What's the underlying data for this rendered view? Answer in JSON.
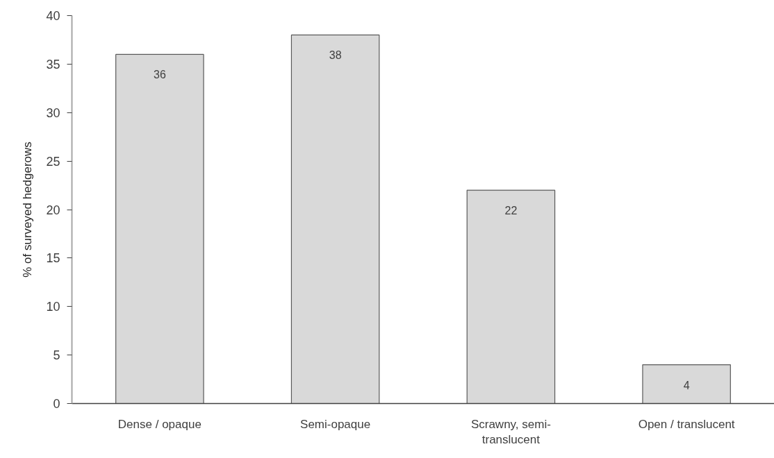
{
  "chart_data": {
    "type": "bar",
    "ylabel": "% of surveyed hedgerows",
    "categories": [
      "Dense / opaque",
      "Semi-opaque",
      "Scrawny, semi-translucent",
      "Open / translucent"
    ],
    "values": [
      36,
      38,
      22,
      4
    ],
    "color": "#d9d9d9",
    "ylim": [
      0,
      40
    ],
    "yticks": [
      0,
      5,
      10,
      15,
      20,
      25,
      30,
      35,
      40
    ],
    "data_labels": true
  }
}
